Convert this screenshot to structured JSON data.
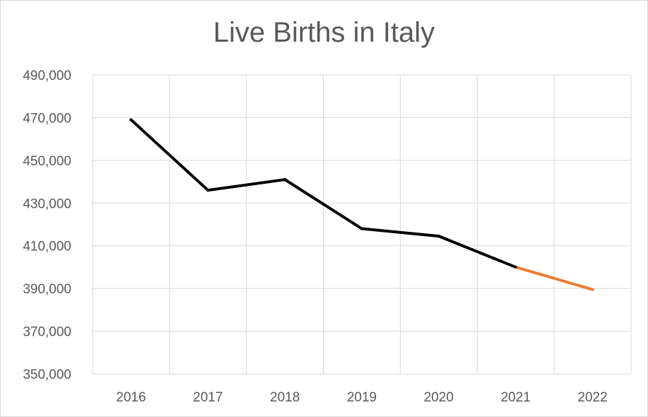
{
  "chart_data": {
    "type": "line",
    "title": "Live Births in Italy",
    "xlabel": "",
    "ylabel": "",
    "categories": [
      "2016",
      "2017",
      "2018",
      "2019",
      "2020",
      "2021",
      "2022"
    ],
    "series": [
      {
        "values": [
          469000,
          436000,
          441000,
          418000,
          414500,
          400000,
          389500
        ],
        "color": "#000000"
      }
    ],
    "highlight_segment": {
      "from": "2021",
      "to": "2022",
      "color": "#ed7d31"
    },
    "ylim": [
      350000,
      490000
    ],
    "yticks": [
      "350,000",
      "370,000",
      "390,000",
      "410,000",
      "430,000",
      "450,000",
      "470,000",
      "490,000"
    ],
    "grid": true,
    "legend": "none"
  }
}
